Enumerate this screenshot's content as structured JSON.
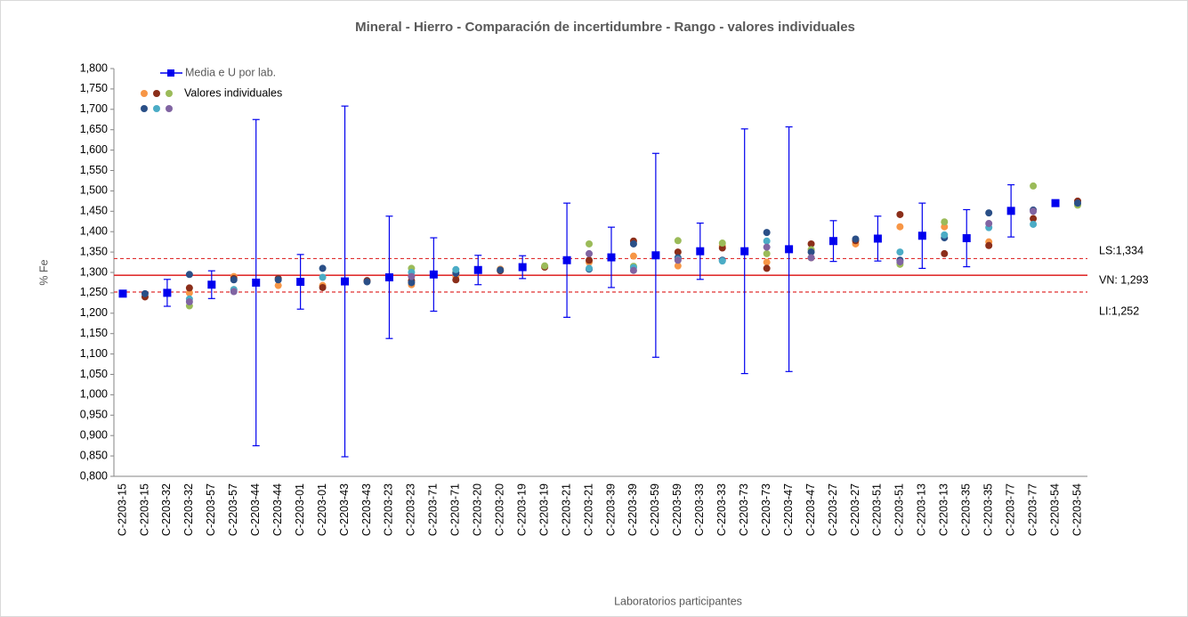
{
  "chart_data": {
    "type": "errorbar_scatter",
    "title": "Mineral - Hierro - Comparación de incertidumbre  - Rango - valores individuales",
    "y_label": "% Fe",
    "x_label": "Laboratorios participantes",
    "categories": [
      "C-2203-15",
      "C-2203-15",
      "C-2203-32",
      "C-2203-32",
      "C-2203-57",
      "C-2203-57",
      "C-2203-44",
      "C-2203-44",
      "C-2203-01",
      "C-2203-01",
      "C-2203-43",
      "C-2203-43",
      "C-2203-23",
      "C-2203-23",
      "C-2203-71",
      "C-2203-71",
      "C-2203-20",
      "C-2203-20",
      "C-2203-19",
      "C-2203-19",
      "C-2203-21",
      "C-2203-21",
      "C-2203-39",
      "C-2203-39",
      "C-2203-59",
      "C-2203-59",
      "C-2203-33",
      "C-2203-33",
      "C-2203-73",
      "C-2203-73",
      "C-2203-47",
      "C-2203-47",
      "C-2203-27",
      "C-2203-27",
      "C-2203-51",
      "C-2203-51",
      "C-2203-13",
      "C-2203-13",
      "C-2203-35",
      "C-2203-35",
      "C-2203-77",
      "C-2203-77",
      "C-2203-54",
      "C-2203-54"
    ],
    "ylim": [
      0.8,
      1.8
    ],
    "yticks": [
      {
        "value": 0.8,
        "label": "0,800"
      },
      {
        "value": 0.85,
        "label": "0,850"
      },
      {
        "value": 0.9,
        "label": "0,900"
      },
      {
        "value": 0.95,
        "label": "0,950"
      },
      {
        "value": 1.0,
        "label": "1,000"
      },
      {
        "value": 1.05,
        "label": "1,050"
      },
      {
        "value": 1.1,
        "label": "1,100"
      },
      {
        "value": 1.15,
        "label": "1,150"
      },
      {
        "value": 1.2,
        "label": "1,200"
      },
      {
        "value": 1.25,
        "label": "1,250"
      },
      {
        "value": 1.3,
        "label": "1,300"
      },
      {
        "value": 1.35,
        "label": "1,350"
      },
      {
        "value": 1.4,
        "label": "1,400"
      },
      {
        "value": 1.45,
        "label": "1,450"
      },
      {
        "value": 1.5,
        "label": "1,500"
      },
      {
        "value": 1.55,
        "label": "1,550"
      },
      {
        "value": 1.6,
        "label": "1,600"
      },
      {
        "value": 1.65,
        "label": "1,650"
      },
      {
        "value": 1.7,
        "label": "1,700"
      },
      {
        "value": 1.75,
        "label": "1,750"
      },
      {
        "value": 1.8,
        "label": "1,800"
      }
    ],
    "mean_series": {
      "name": "Media e U por lab.",
      "color": "#0000ee",
      "values": [
        1.248,
        null,
        1.25,
        null,
        1.27,
        null,
        1.275,
        null,
        1.277,
        null,
        1.278,
        null,
        1.288,
        null,
        1.295,
        null,
        1.306,
        null,
        1.313,
        null,
        1.33,
        null,
        1.337,
        null,
        1.342,
        null,
        1.352,
        null,
        1.352,
        null,
        1.357,
        null,
        1.377,
        null,
        1.383,
        null,
        1.39,
        null,
        1.384,
        null,
        1.451,
        null,
        1.47,
        null
      ],
      "errors": [
        null,
        null,
        0.033,
        null,
        0.034,
        null,
        0.4,
        null,
        0.067,
        null,
        0.43,
        null,
        0.15,
        null,
        0.09,
        null,
        0.036,
        null,
        0.028,
        null,
        0.14,
        null,
        0.074,
        null,
        0.25,
        null,
        0.069,
        null,
        0.3,
        null,
        0.3,
        null,
        0.05,
        null,
        0.055,
        null,
        0.08,
        null,
        0.07,
        null,
        0.064,
        null,
        null,
        null
      ]
    },
    "individual": {
      "name": "Valores individuales",
      "series": [
        {
          "color": "#f79646",
          "values": [
            null,
            null,
            null,
            1.25,
            null,
            1.29,
            null,
            1.268,
            null,
            1.268,
            null,
            1.278,
            null,
            1.27,
            null,
            1.29,
            null,
            1.308,
            null,
            1.315,
            null,
            1.325,
            null,
            1.34,
            null,
            1.316,
            null,
            1.365,
            null,
            1.325,
            null,
            1.336,
            null,
            1.37,
            null,
            1.412,
            null,
            1.412,
            null,
            1.375,
            null,
            null,
            null,
            null
          ]
        },
        {
          "color": "#8b2e1a",
          "values": [
            null,
            1.24,
            null,
            1.262,
            null,
            1.285,
            null,
            1.285,
            null,
            1.263,
            null,
            1.28,
            null,
            1.28,
            null,
            1.282,
            null,
            1.304,
            null,
            1.313,
            null,
            1.33,
            null,
            1.377,
            null,
            1.35,
            null,
            1.36,
            null,
            1.31,
            null,
            1.37,
            null,
            1.378,
            null,
            1.442,
            null,
            1.346,
            null,
            1.366,
            null,
            1.432,
            null,
            1.475
          ]
        },
        {
          "color": "#9bbb59",
          "values": [
            null,
            null,
            null,
            1.218,
            null,
            1.258,
            null,
            null,
            null,
            null,
            null,
            null,
            null,
            1.31,
            null,
            1.3,
            null,
            null,
            null,
            1.316,
            null,
            1.37,
            null,
            1.315,
            null,
            1.378,
            null,
            1.372,
            null,
            1.346,
            null,
            1.356,
            null,
            null,
            null,
            1.32,
            null,
            1.424,
            null,
            null,
            null,
            1.512,
            null,
            1.465
          ]
        },
        {
          "color": "#2a4f87",
          "values": [
            null,
            1.248,
            null,
            1.295,
            null,
            1.282,
            null,
            1.282,
            null,
            1.31,
            null,
            1.277,
            null,
            1.275,
            null,
            1.298,
            null,
            1.306,
            null,
            null,
            null,
            1.308,
            null,
            1.37,
            null,
            1.336,
            null,
            1.33,
            null,
            1.398,
            null,
            1.35,
            null,
            1.382,
            null,
            1.33,
            null,
            1.385,
            null,
            1.446,
            null,
            1.453,
            null,
            1.47
          ]
        },
        {
          "color": "#4bacc6",
          "values": [
            null,
            null,
            null,
            1.235,
            null,
            1.258,
            null,
            null,
            null,
            1.288,
            null,
            null,
            null,
            1.3,
            null,
            1.307,
            null,
            null,
            null,
            null,
            null,
            1.31,
            null,
            1.312,
            null,
            1.332,
            null,
            1.328,
            null,
            1.377,
            null,
            null,
            null,
            null,
            null,
            1.35,
            null,
            1.392,
            null,
            1.41,
            null,
            1.418,
            null,
            null
          ]
        },
        {
          "color": "#8064a2",
          "values": [
            null,
            null,
            null,
            1.228,
            null,
            1.253,
            null,
            null,
            null,
            null,
            null,
            null,
            null,
            1.29,
            null,
            null,
            null,
            null,
            null,
            null,
            null,
            1.346,
            null,
            1.305,
            null,
            1.33,
            null,
            null,
            null,
            1.362,
            null,
            1.336,
            null,
            null,
            null,
            1.326,
            null,
            null,
            null,
            1.42,
            null,
            1.45,
            null,
            null
          ]
        }
      ]
    },
    "reference_lines": [
      {
        "value": 1.334,
        "label": "LS:1,334",
        "color": "#e03030",
        "dashed": true
      },
      {
        "value": 1.293,
        "label": "VN: 1,293",
        "color": "#e03030",
        "dashed": false
      },
      {
        "value": 1.252,
        "label": "LI:1,252",
        "color": "#e03030",
        "dashed": true
      }
    ]
  }
}
